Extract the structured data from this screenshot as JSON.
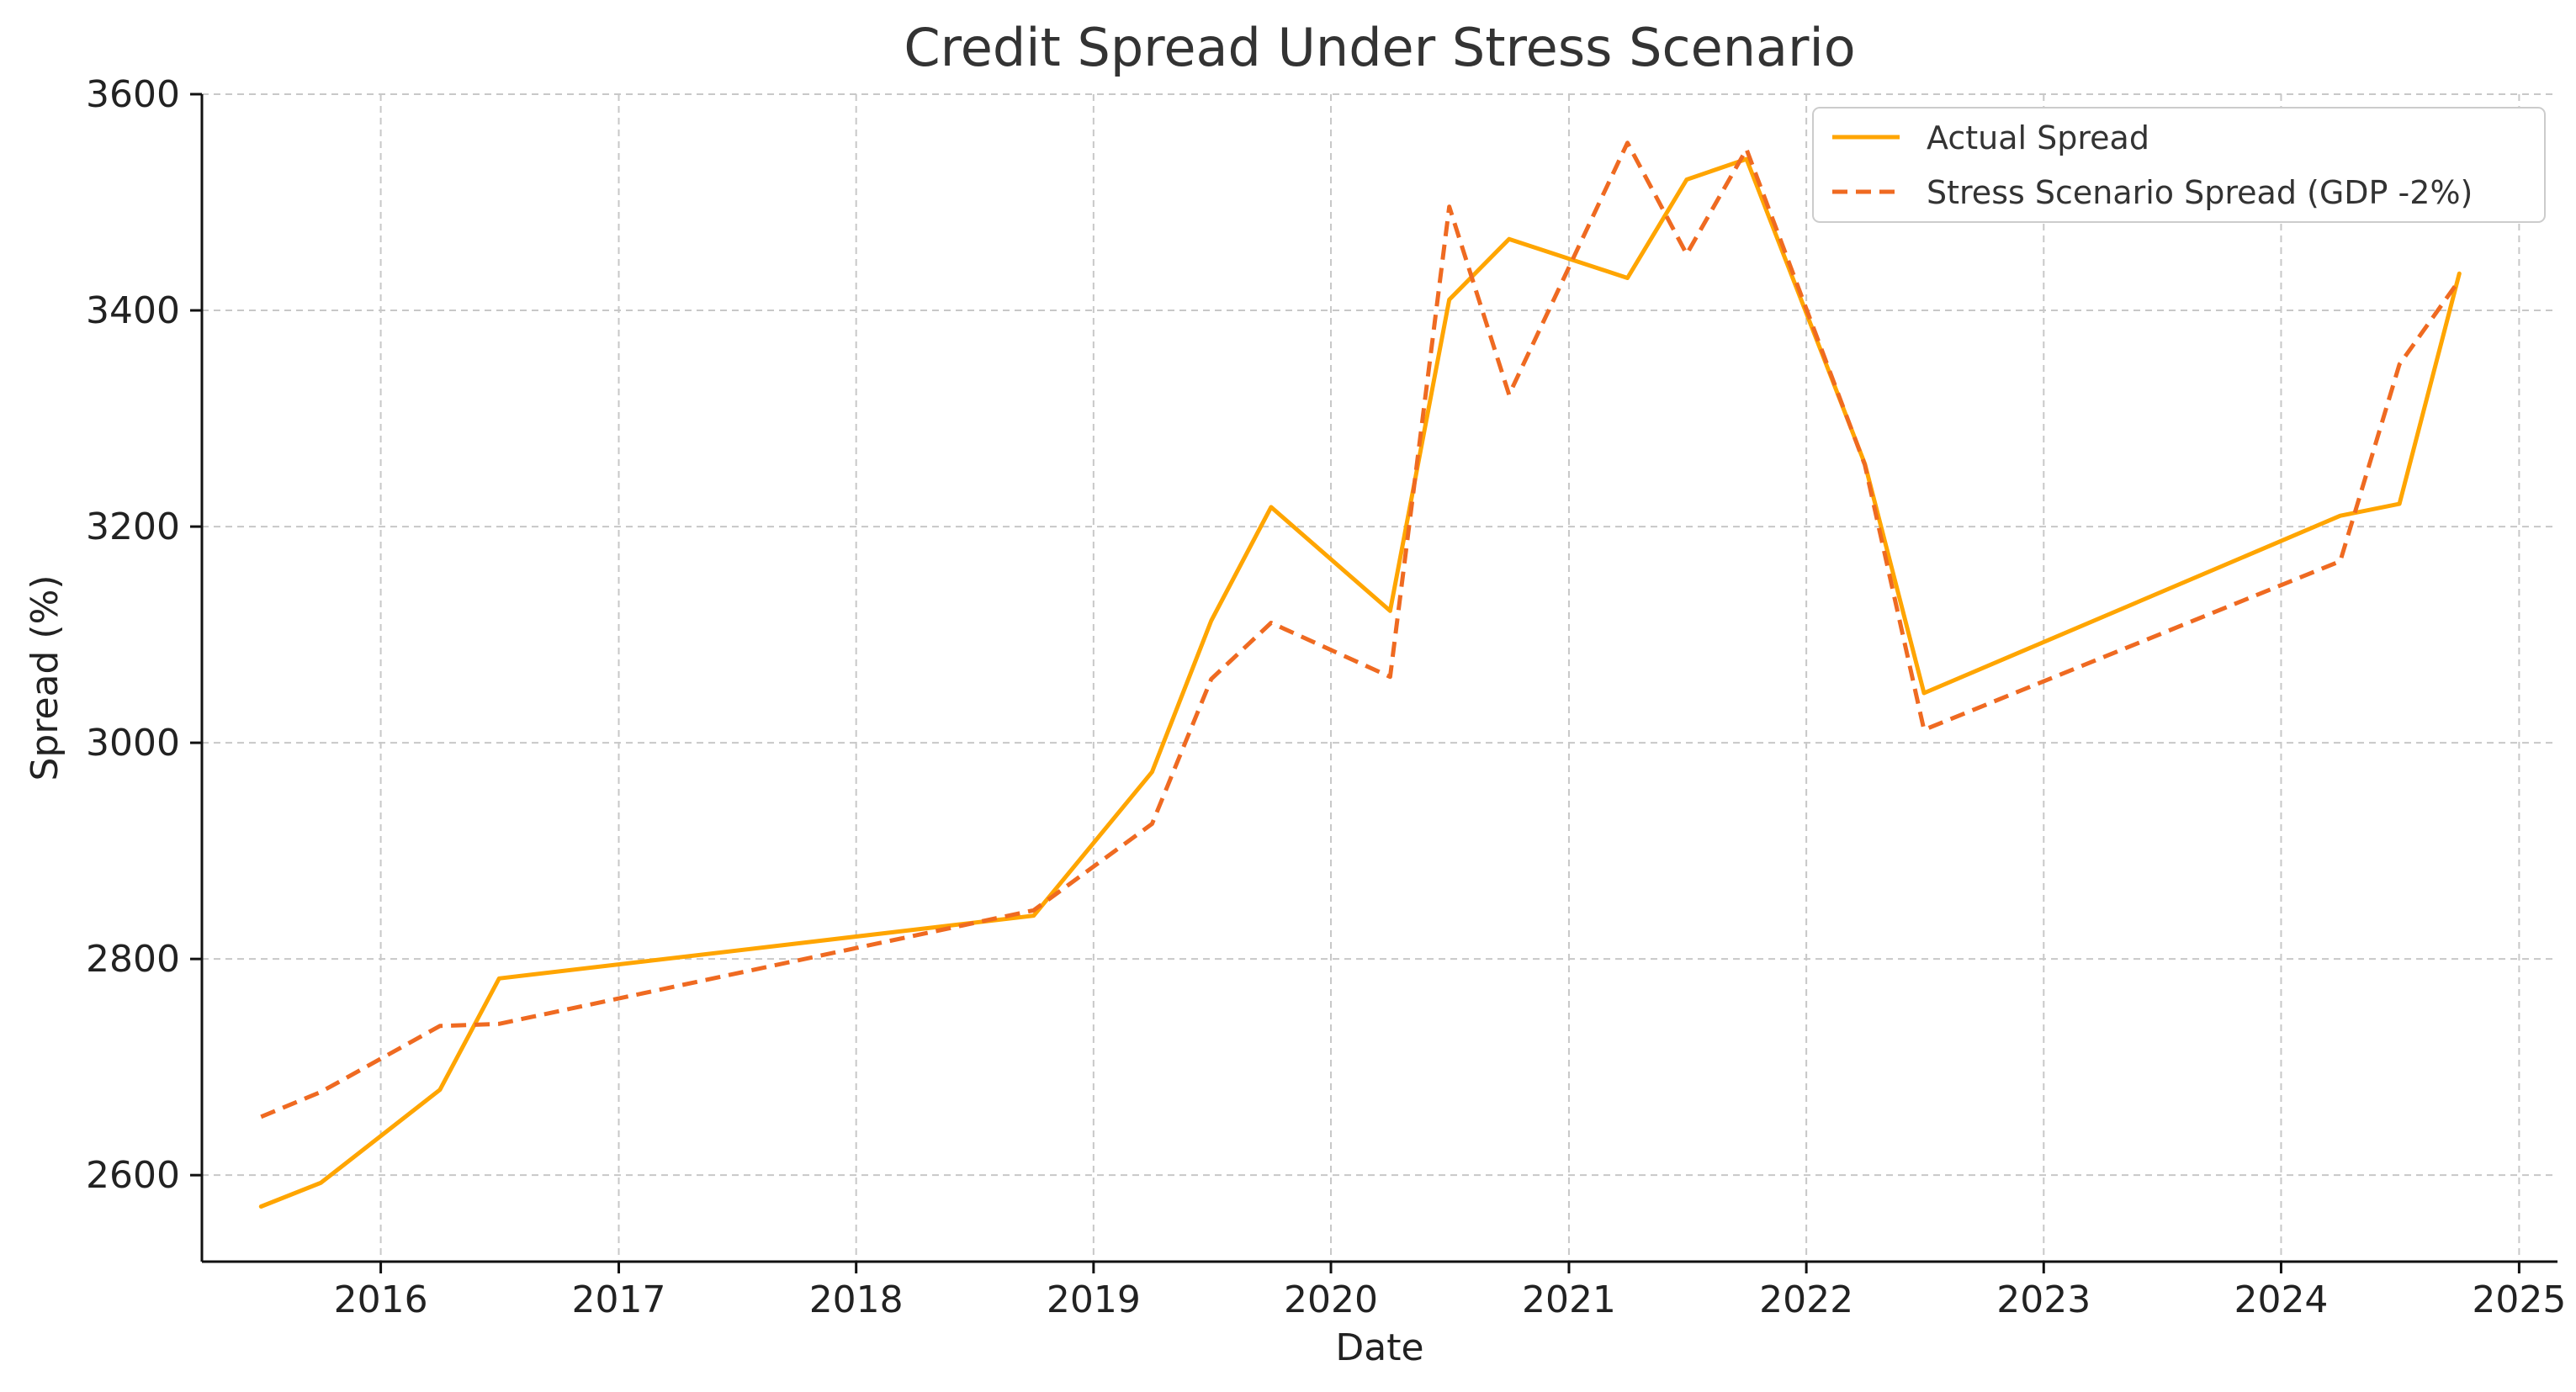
{
  "chart_data": {
    "type": "line",
    "title": "Credit Spread Under Stress Scenario",
    "xlabel": "Date",
    "ylabel": "Spread (%)",
    "xlim": [
      "2015-04-01",
      "2025-03-01"
    ],
    "ylim": [
      2520,
      3600
    ],
    "x_ticks": [
      "2016",
      "2017",
      "2018",
      "2019",
      "2020",
      "2021",
      "2022",
      "2023",
      "2024",
      "2025"
    ],
    "y_ticks": [
      2600,
      2800,
      3000,
      3200,
      3400,
      3600
    ],
    "grid": true,
    "legend_position": "top-right",
    "series": [
      {
        "name": "Actual Spread",
        "color": "#FFA500",
        "style": "solid",
        "points": [
          {
            "x": "2015-07-01",
            "y": 2571
          },
          {
            "x": "2015-10-01",
            "y": 2593
          },
          {
            "x": "2016-04-01",
            "y": 2679
          },
          {
            "x": "2016-07-01",
            "y": 2782
          },
          {
            "x": "2018-10-01",
            "y": 2840
          },
          {
            "x": "2019-04-01",
            "y": 2973
          },
          {
            "x": "2019-07-01",
            "y": 3113
          },
          {
            "x": "2019-10-01",
            "y": 3218
          },
          {
            "x": "2020-04-01",
            "y": 3122
          },
          {
            "x": "2020-07-01",
            "y": 3410
          },
          {
            "x": "2020-10-01",
            "y": 3466
          },
          {
            "x": "2021-04-01",
            "y": 3430
          },
          {
            "x": "2021-07-01",
            "y": 3521
          },
          {
            "x": "2021-10-01",
            "y": 3540
          },
          {
            "x": "2022-04-01",
            "y": 3258
          },
          {
            "x": "2022-07-01",
            "y": 3046
          },
          {
            "x": "2024-04-01",
            "y": 3210
          },
          {
            "x": "2024-07-01",
            "y": 3221
          },
          {
            "x": "2024-10-01",
            "y": 3434
          }
        ]
      },
      {
        "name": "Stress Scenario Spread (GDP -2%)",
        "color": "#EF6A21",
        "style": "dashed",
        "points": [
          {
            "x": "2015-07-01",
            "y": 2654
          },
          {
            "x": "2015-10-01",
            "y": 2677
          },
          {
            "x": "2016-04-01",
            "y": 2738
          },
          {
            "x": "2016-07-01",
            "y": 2740
          },
          {
            "x": "2018-10-01",
            "y": 2845
          },
          {
            "x": "2019-04-01",
            "y": 2925
          },
          {
            "x": "2019-07-01",
            "y": 3059
          },
          {
            "x": "2019-10-01",
            "y": 3111
          },
          {
            "x": "2020-04-01",
            "y": 3061
          },
          {
            "x": "2020-07-01",
            "y": 3496
          },
          {
            "x": "2020-10-01",
            "y": 3322
          },
          {
            "x": "2021-04-01",
            "y": 3555
          },
          {
            "x": "2021-07-01",
            "y": 3452
          },
          {
            "x": "2021-10-01",
            "y": 3549
          },
          {
            "x": "2022-04-01",
            "y": 3257
          },
          {
            "x": "2022-07-01",
            "y": 3012
          },
          {
            "x": "2024-04-01",
            "y": 3168
          },
          {
            "x": "2024-07-01",
            "y": 3350
          },
          {
            "x": "2024-10-01",
            "y": 3428
          }
        ]
      }
    ]
  }
}
